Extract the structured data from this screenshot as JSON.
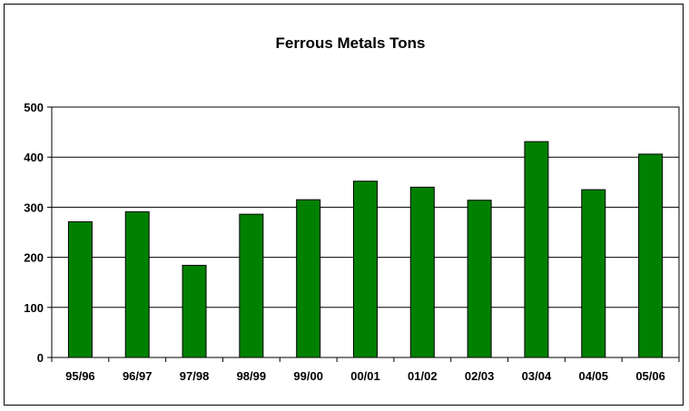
{
  "chart_data": {
    "type": "bar",
    "title": "Ferrous Metals Tons",
    "categories": [
      "95/96",
      "96/97",
      "97/98",
      "98/99",
      "99/00",
      "00/01",
      "01/02",
      "02/03",
      "03/04",
      "04/05",
      "05/06"
    ],
    "values": [
      271,
      291,
      184,
      286,
      315,
      352,
      340,
      314,
      431,
      335,
      406
    ],
    "xlabel": "",
    "ylabel": "",
    "ylim": [
      0,
      500
    ],
    "yticks": [
      0,
      100,
      200,
      300,
      400,
      500
    ],
    "grid": true,
    "legend": "none",
    "colors": {
      "bar": "#008000",
      "plot_background": "#ffffff",
      "gridline": "#000000"
    }
  }
}
